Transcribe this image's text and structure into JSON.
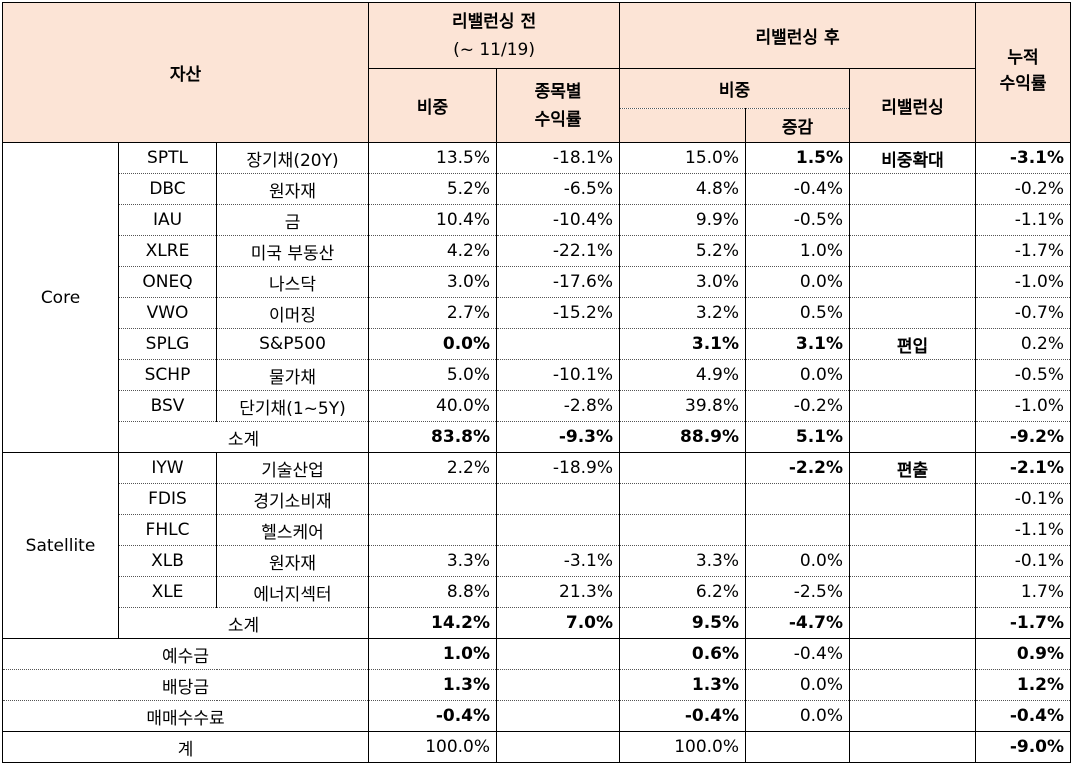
{
  "header": {
    "asset": "자산",
    "before": "리밸런싱 전",
    "before_date": "(~ 11/19)",
    "after": "리밸런싱 후",
    "cum_line1": "누적",
    "cum_line2": "수익률",
    "weight": "비중",
    "ret_line1": "종목별",
    "ret_line2": "수익률",
    "after_weight": "비중",
    "change": "증감",
    "rebal": "리밸런싱"
  },
  "core": {
    "label": "Core",
    "rows": [
      {
        "ticker": "SPTL",
        "name": "장기채(20Y)",
        "w_before": "13.5%",
        "ret": "-18.1%",
        "w_after": "15.0%",
        "chg": "1.5%",
        "action": "비중확대",
        "cum": "-3.1%"
      },
      {
        "ticker": "DBC",
        "name": "원자재",
        "w_before": "5.2%",
        "ret": "-6.5%",
        "w_after": "4.8%",
        "chg": "-0.4%",
        "action": "",
        "cum": "-0.2%"
      },
      {
        "ticker": "IAU",
        "name": "금",
        "w_before": "10.4%",
        "ret": "-10.4%",
        "w_after": "9.9%",
        "chg": "-0.5%",
        "action": "",
        "cum": "-1.1%"
      },
      {
        "ticker": "XLRE",
        "name": "미국 부동산",
        "w_before": "4.2%",
        "ret": "-22.1%",
        "w_after": "5.2%",
        "chg": "1.0%",
        "action": "",
        "cum": "-1.7%"
      },
      {
        "ticker": "ONEQ",
        "name": "나스닥",
        "w_before": "3.0%",
        "ret": "-17.6%",
        "w_after": "3.0%",
        "chg": "0.0%",
        "action": "",
        "cum": "-1.0%"
      },
      {
        "ticker": "VWO",
        "name": "이머징",
        "w_before": "2.7%",
        "ret": "-15.2%",
        "w_after": "3.2%",
        "chg": "0.5%",
        "action": "",
        "cum": "-0.7%"
      },
      {
        "ticker": "SPLG",
        "name": "S&P500",
        "w_before": "0.0%",
        "ret": "",
        "w_after": "3.1%",
        "chg": "3.1%",
        "action": "편입",
        "cum": "0.2%"
      },
      {
        "ticker": "SCHP",
        "name": "물가채",
        "w_before": "5.0%",
        "ret": "-10.1%",
        "w_after": "4.9%",
        "chg": "0.0%",
        "action": "",
        "cum": "-0.5%"
      },
      {
        "ticker": "BSV",
        "name": "단기채(1~5Y)",
        "w_before": "40.0%",
        "ret": "-2.8%",
        "w_after": "39.8%",
        "chg": "-0.2%",
        "action": "",
        "cum": "-1.0%"
      }
    ],
    "subtotal": {
      "label": "소계",
      "w_before": "83.8%",
      "ret": "-9.3%",
      "w_after": "88.9%",
      "chg": "5.1%",
      "cum": "-9.2%"
    }
  },
  "satellite": {
    "label": "Satellite",
    "rows": [
      {
        "ticker": "IYW",
        "name": "기술산업",
        "w_before": "2.2%",
        "ret": "-18.9%",
        "w_after": "",
        "chg": "-2.2%",
        "action": "편출",
        "cum": "-2.1%"
      },
      {
        "ticker": "FDIS",
        "name": "경기소비재",
        "w_before": "",
        "ret": "",
        "w_after": "",
        "chg": "",
        "action": "",
        "cum": "-0.1%"
      },
      {
        "ticker": "FHLC",
        "name": "헬스케어",
        "w_before": "",
        "ret": "",
        "w_after": "",
        "chg": "",
        "action": "",
        "cum": "-1.1%"
      },
      {
        "ticker": "XLB",
        "name": "원자재",
        "w_before": "3.3%",
        "ret": "-3.1%",
        "w_after": "3.3%",
        "chg": "0.0%",
        "action": "",
        "cum": "-0.1%"
      },
      {
        "ticker": "XLE",
        "name": "에너지섹터",
        "w_before": "8.8%",
        "ret": "21.3%",
        "w_after": "6.2%",
        "chg": "-2.5%",
        "action": "",
        "cum": "1.7%"
      }
    ],
    "subtotal": {
      "label": "소계",
      "w_before": "14.2%",
      "ret": "7.0%",
      "w_after": "9.5%",
      "chg": "-4.7%",
      "cum": "-1.7%"
    }
  },
  "others": [
    {
      "label": "예수금",
      "w_before": "1.0%",
      "ret": "",
      "w_after": "0.6%",
      "chg": "-0.4%",
      "cum": "0.9%"
    },
    {
      "label": "배당금",
      "w_before": "1.3%",
      "ret": "",
      "w_after": "1.3%",
      "chg": "0.0%",
      "cum": "1.2%"
    },
    {
      "label": "매매수수료",
      "w_before": "-0.4%",
      "ret": "",
      "w_after": "-0.4%",
      "chg": "0.0%",
      "cum": "-0.4%"
    }
  ],
  "total": {
    "label": "계",
    "w_before": "100.0%",
    "ret": "",
    "w_after": "100.0%",
    "chg": "",
    "cum": "-9.0%"
  }
}
